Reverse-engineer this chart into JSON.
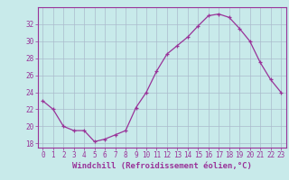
{
  "x": [
    0,
    1,
    2,
    3,
    4,
    5,
    6,
    7,
    8,
    9,
    10,
    11,
    12,
    13,
    14,
    15,
    16,
    17,
    18,
    19,
    20,
    21,
    22,
    23
  ],
  "y": [
    23,
    22,
    20,
    19.5,
    19.5,
    18.2,
    18.5,
    19.0,
    19.5,
    22.2,
    24.0,
    26.5,
    28.5,
    29.5,
    30.5,
    31.8,
    33.0,
    33.2,
    32.8,
    31.5,
    30.0,
    27.5,
    25.5,
    24.0
  ],
  "line_color": "#993399",
  "marker": "+",
  "bg_color": "#c8eaea",
  "grid_color": "#aabccc",
  "xlabel": "Windchill (Refroidissement éolien,°C)",
  "ylim": [
    17.5,
    34.0
  ],
  "xlim": [
    -0.5,
    23.5
  ],
  "yticks": [
    18,
    20,
    22,
    24,
    26,
    28,
    30,
    32
  ],
  "xticks": [
    0,
    1,
    2,
    3,
    4,
    5,
    6,
    7,
    8,
    9,
    10,
    11,
    12,
    13,
    14,
    15,
    16,
    17,
    18,
    19,
    20,
    21,
    22,
    23
  ],
  "font_color": "#993399",
  "font_family": "monospace",
  "xlabel_fontsize": 6.5,
  "tick_fontsize": 5.5,
  "marker_size": 3.5,
  "line_width": 0.9
}
